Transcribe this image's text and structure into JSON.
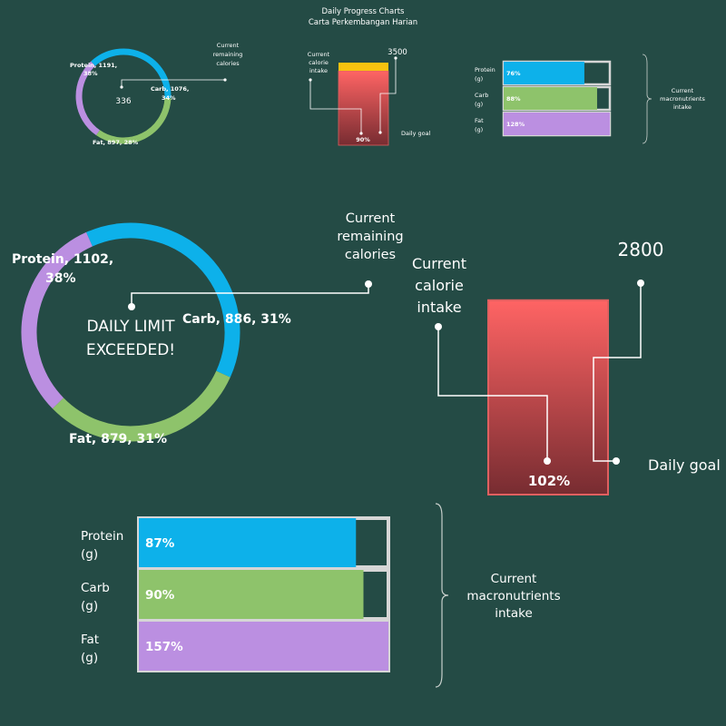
{
  "page": {
    "title": "Daily Progress Charts",
    "subtitle": "Carta Perkembangan Harian"
  },
  "colors": {
    "background": "#244b45",
    "protein": "#0db1ea",
    "carb": "#8ec36b",
    "fat": "#bb8fe1",
    "calorie_top": "#ff6464",
    "calorie_bottom": "#772c31",
    "calorie_border": "#e06060",
    "calorie_excess": "#f7c20f",
    "goal_outline": "#d6d6d6"
  },
  "chart_data": [
    {
      "id": "small-donut",
      "type": "pie",
      "center_label": "336",
      "slices": [
        {
          "name": "Protein",
          "value": 1191,
          "percent": 38,
          "label_line1": "Protein, 1191,",
          "label_line2": "38%"
        },
        {
          "name": "Carb",
          "value": 1076,
          "percent": 34,
          "label_line1": "Carb, 1076,",
          "label_line2": "34%"
        },
        {
          "name": "Fat",
          "value": 897,
          "percent": 28,
          "label_line1": "Fat, 897, 28%",
          "label_line2": ""
        }
      ],
      "callout": [
        "Current",
        "remaining",
        "calories"
      ]
    },
    {
      "id": "small-calorie",
      "type": "bar",
      "goal_label": "3500",
      "percent": 90,
      "percent_label": "90%",
      "left_callout": [
        "Current",
        "calorie",
        "intake"
      ],
      "right_callout": "Daily goal"
    },
    {
      "id": "small-macros",
      "type": "bar",
      "categories": [
        {
          "line1": "Protein",
          "line2": "(g)"
        },
        {
          "line1": "Carb",
          "line2": "(g)"
        },
        {
          "line1": "Fat",
          "line2": "(g)"
        }
      ],
      "values": [
        76,
        88,
        128
      ],
      "value_labels": [
        "76%",
        "88%",
        "128%"
      ],
      "brace_label": [
        "Current",
        "macronutrients",
        "intake"
      ]
    },
    {
      "id": "large-donut",
      "type": "pie",
      "center_label": [
        "DAILY LIMIT",
        "EXCEEDED!"
      ],
      "slices": [
        {
          "name": "Protein",
          "value": 1102,
          "percent": 38,
          "label_line1": "Protein, 1102,",
          "label_line2": "38%"
        },
        {
          "name": "Carb",
          "value": 886,
          "percent": 31,
          "label_line1": "Carb, 886, 31%",
          "label_line2": ""
        },
        {
          "name": "Fat",
          "value": 879,
          "percent": 31,
          "label_line1": "Fat, 879, 31%",
          "label_line2": ""
        }
      ],
      "callout": [
        "Current",
        "remaining",
        "calories"
      ]
    },
    {
      "id": "large-calorie",
      "type": "bar",
      "goal_label": "2800",
      "percent": 102,
      "percent_label": "102%",
      "left_callout": [
        "Current",
        "calorie",
        "intake"
      ],
      "right_callout": "Daily goal"
    },
    {
      "id": "large-macros",
      "type": "bar",
      "categories": [
        {
          "line1": "Protein",
          "line2": "(g)"
        },
        {
          "line1": "Carb",
          "line2": "(g)"
        },
        {
          "line1": "Fat",
          "line2": "(g)"
        }
      ],
      "values": [
        87,
        90,
        157
      ],
      "value_labels": [
        "87%",
        "90%",
        "157%"
      ],
      "brace_label": [
        "Current",
        "macronutrients",
        "intake"
      ]
    }
  ]
}
